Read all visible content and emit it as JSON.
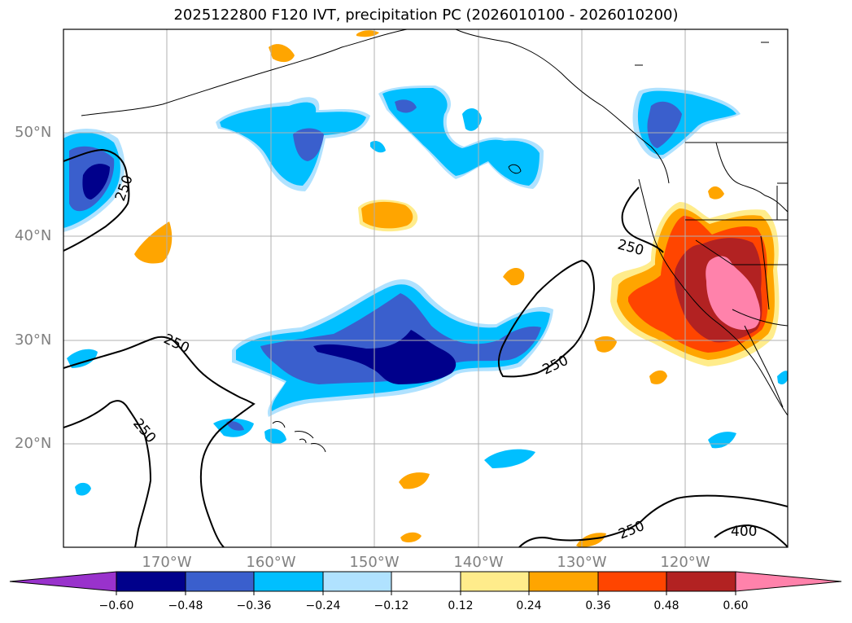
{
  "title": "2025122800 F120 IVT, precipitation PC (2026010100 - 2026010200)",
  "map": {
    "lon_range": [
      -180,
      -110
    ],
    "lat_range": [
      10,
      60
    ],
    "lat_labels": [
      "50°N",
      "40°N",
      "30°N",
      "20°N"
    ],
    "lon_labels": [
      "170°W",
      "160°W",
      "150°W",
      "140°W",
      "130°W",
      "120°W"
    ],
    "contour_labels": [
      "250",
      "250",
      "250",
      "250",
      "250",
      "250",
      "400"
    ],
    "colors": {
      "grid": "#b0b0b0",
      "contour": "#000000"
    }
  },
  "colorbar": {
    "ticks": [
      "−0.60",
      "−0.48",
      "−0.36",
      "−0.24",
      "−0.12",
      "0.12",
      "0.24",
      "0.36",
      "0.48",
      "0.60"
    ],
    "colors": [
      "#9932cc",
      "#00008b",
      "#3a5fcd",
      "#00bfff",
      "#b0e2ff",
      "#ffffff",
      "#ffec8b",
      "#ffa500",
      "#ff4500",
      "#b22222",
      "#ff82ab"
    ]
  }
}
